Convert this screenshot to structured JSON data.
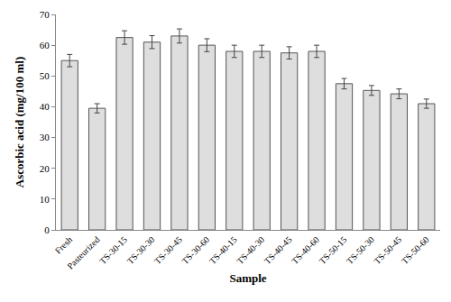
{
  "chart_data": {
    "type": "bar",
    "x_label": "Sample",
    "y_label": "Ascorbic acid (mg/100 ml)",
    "categories": [
      "Fresh",
      "Pasteurized",
      "TS-30-15",
      "TS-30-30",
      "TS-30-45",
      "TS-30-60",
      "TS-40-15",
      "TS-40-30",
      "TS-40-45",
      "TS-40-60",
      "TS-50-15",
      "TS-50-30",
      "TS-50-45",
      "TS-50-60"
    ],
    "values": [
      55,
      39.5,
      62.5,
      61,
      63,
      60,
      58,
      58,
      57.5,
      58,
      47.5,
      45.3,
      44.2,
      41
    ],
    "errors": [
      2,
      1.5,
      2.2,
      2.1,
      2.3,
      2.1,
      2,
      2,
      2,
      2,
      1.7,
      1.6,
      1.6,
      1.5
    ],
    "color": "#dedede",
    "ylim": [
      0,
      70
    ],
    "yticks": [
      0,
      10,
      20,
      30,
      40,
      50,
      60,
      70
    ],
    "grid": false
  }
}
